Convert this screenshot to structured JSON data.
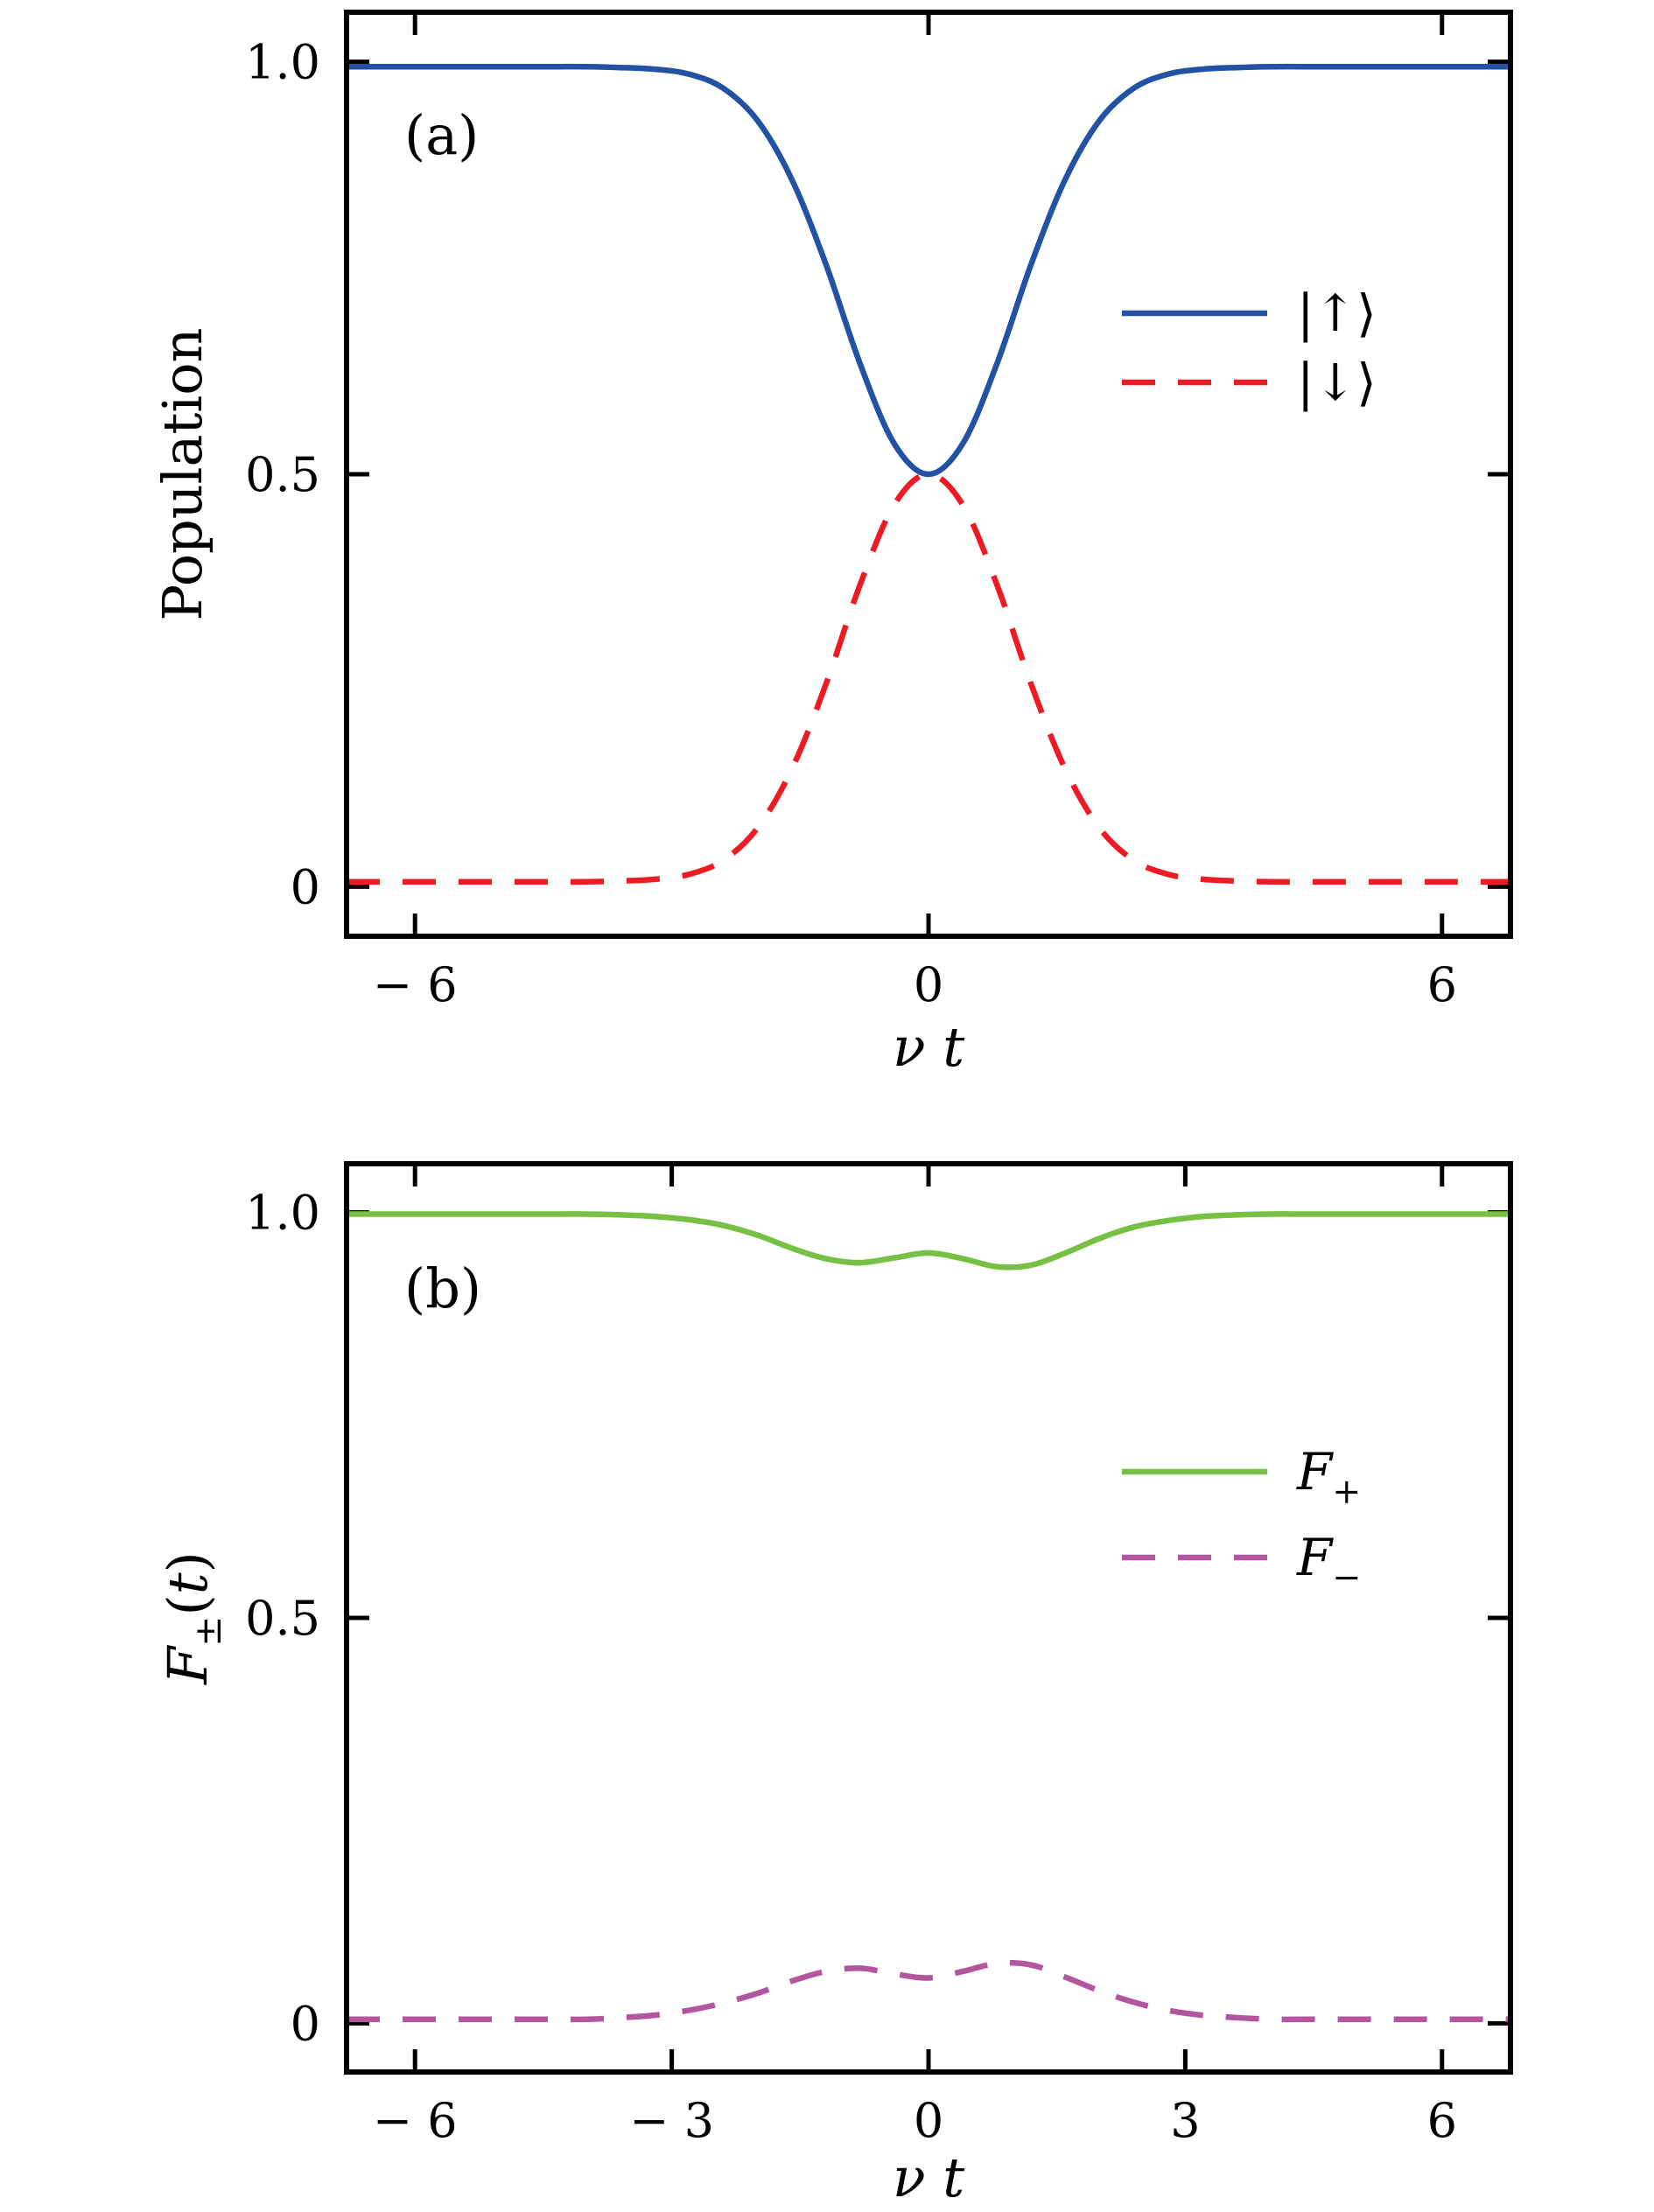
{
  "figure": {
    "background": "#ffffff",
    "frame_color": "#000000"
  },
  "chart_data": [
    {
      "id": "a",
      "type": "line",
      "panel_label": "(a)",
      "xlabel_rich": [
        {
          "text": "ν t",
          "italic": true
        }
      ],
      "ylabel_rich": [
        {
          "text": "Population",
          "italic": false
        }
      ],
      "xlim": [
        -6.8,
        6.8
      ],
      "ylim": [
        -0.06,
        1.06
      ],
      "grid": false,
      "xticks": [
        {
          "v": -6,
          "label": "− 6"
        },
        {
          "v": 0,
          "label": "0"
        },
        {
          "v": 6,
          "label": "6"
        }
      ],
      "yticks": [
        {
          "v": 0,
          "label": "0"
        },
        {
          "v": 0.5,
          "label": "0.5"
        },
        {
          "v": 1.0,
          "label": "1.0"
        }
      ],
      "x": [
        -6.8,
        -6.4,
        -6,
        -5.6,
        -5.2,
        -4.8,
        -4.4,
        -4,
        -3.6,
        -3.2,
        -2.8,
        -2.4,
        -2,
        -1.6,
        -1.2,
        -0.8,
        -0.4,
        0,
        0.4,
        0.8,
        1.2,
        1.6,
        2,
        2.4,
        2.8,
        3.2,
        3.6,
        4,
        4.4,
        4.8,
        5.2,
        5.6,
        6,
        6.4,
        6.8
      ],
      "series": [
        {
          "name": "spin-up",
          "label_rich": [
            {
              "text": "|↑⟩",
              "italic": false
            }
          ],
          "color": "#2351a3",
          "style": "solid",
          "values": [
            0.994,
            0.994,
            0.994,
            0.994,
            0.994,
            0.994,
            0.994,
            0.994,
            0.993,
            0.991,
            0.985,
            0.968,
            0.929,
            0.858,
            0.755,
            0.634,
            0.537,
            0.5,
            0.537,
            0.634,
            0.755,
            0.858,
            0.929,
            0.968,
            0.985,
            0.991,
            0.993,
            0.994,
            0.994,
            0.994,
            0.994,
            0.994,
            0.994,
            0.994,
            0.994
          ]
        },
        {
          "name": "spin-down",
          "label_rich": [
            {
              "text": "|↓⟩",
              "italic": false
            }
          ],
          "color": "#ed1c24",
          "style": "dashed",
          "values": [
            0.006,
            0.006,
            0.006,
            0.006,
            0.006,
            0.006,
            0.006,
            0.006,
            0.007,
            0.009,
            0.015,
            0.032,
            0.071,
            0.142,
            0.245,
            0.366,
            0.463,
            0.5,
            0.463,
            0.366,
            0.245,
            0.142,
            0.071,
            0.032,
            0.015,
            0.009,
            0.007,
            0.006,
            0.006,
            0.006,
            0.006,
            0.006,
            0.006,
            0.006,
            0.006
          ]
        }
      ],
      "legend_position": "right-middle",
      "layout": {
        "frame": [
          396,
          14,
          1726,
          1070
        ],
        "panel_label_xy": [
          462,
          176
        ],
        "xlabel_xy": [
          1061,
          1218
        ],
        "ylabel_xy": [
          230,
          542
        ],
        "legend": {
          "line_x": [
            1282,
            1448
          ],
          "label_x": 1482,
          "rows_y": [
            358,
            437
          ]
        }
      }
    },
    {
      "id": "b",
      "type": "line",
      "panel_label": "(b)",
      "xlabel_rich": [
        {
          "text": "ν t",
          "italic": true
        }
      ],
      "ylabel_rich": [
        {
          "text": "F",
          "italic": true
        },
        {
          "text": "±",
          "sub": true
        },
        {
          "text": "(",
          "italic": false
        },
        {
          "text": "t",
          "italic": true
        },
        {
          "text": ")",
          "italic": false
        }
      ],
      "xlim": [
        -6.8,
        6.8
      ],
      "ylim": [
        -0.06,
        1.06
      ],
      "grid": false,
      "xticks": [
        {
          "v": -6,
          "label": "− 6"
        },
        {
          "v": -3,
          "label": "− 3"
        },
        {
          "v": 0,
          "label": "0"
        },
        {
          "v": 3,
          "label": "3"
        },
        {
          "v": 6,
          "label": "6"
        }
      ],
      "yticks": [
        {
          "v": 0,
          "label": "0"
        },
        {
          "v": 0.5,
          "label": "0.5"
        },
        {
          "v": 1.0,
          "label": "1.0"
        }
      ],
      "x": [
        -6.8,
        -6.4,
        -6,
        -5.6,
        -5.2,
        -4.8,
        -4.4,
        -4,
        -3.6,
        -3.2,
        -2.8,
        -2.4,
        -2,
        -1.6,
        -1.2,
        -0.8,
        -0.4,
        0,
        0.4,
        0.8,
        1.2,
        1.6,
        2,
        2.4,
        2.8,
        3.2,
        3.6,
        4,
        4.4,
        4.8,
        5.2,
        5.6,
        6,
        6.4,
        6.8
      ],
      "series": [
        {
          "name": "fidelity-plus",
          "label_rich": [
            {
              "text": "F",
              "italic": true
            },
            {
              "text": "+",
              "sub": true
            }
          ],
          "color": "#76c043",
          "style": "solid",
          "values": [
            0.998,
            0.998,
            0.998,
            0.998,
            0.998,
            0.998,
            0.998,
            0.998,
            0.997,
            0.995,
            0.991,
            0.984,
            0.972,
            0.956,
            0.943,
            0.938,
            0.944,
            0.95,
            0.943,
            0.933,
            0.935,
            0.95,
            0.968,
            0.982,
            0.99,
            0.995,
            0.997,
            0.998,
            0.998,
            0.998,
            0.998,
            0.998,
            0.998,
            0.998,
            0.998
          ]
        },
        {
          "name": "fidelity-minus",
          "label_rich": [
            {
              "text": "F",
              "italic": true
            },
            {
              "text": "−",
              "sub": true
            }
          ],
          "color": "#b4559f",
          "style": "dashed",
          "values": [
            0.005,
            0.005,
            0.005,
            0.005,
            0.005,
            0.005,
            0.005,
            0.005,
            0.007,
            0.01,
            0.016,
            0.025,
            0.037,
            0.052,
            0.064,
            0.068,
            0.061,
            0.056,
            0.064,
            0.074,
            0.072,
            0.057,
            0.04,
            0.026,
            0.016,
            0.01,
            0.007,
            0.005,
            0.005,
            0.005,
            0.005,
            0.005,
            0.005,
            0.005,
            0.005
          ]
        }
      ],
      "legend_position": "right-middle",
      "layout": {
        "frame": [
          396,
          1330,
          1726,
          2368
        ],
        "panel_label_xy": [
          462,
          1494
        ],
        "xlabel_xy": [
          1061,
          2510
        ],
        "ylabel_xy": [
          236,
          1849
        ],
        "legend": {
          "line_x": [
            1282,
            1448
          ],
          "label_x": 1482,
          "rows_y": [
            1682,
            1780
          ]
        }
      }
    }
  ]
}
